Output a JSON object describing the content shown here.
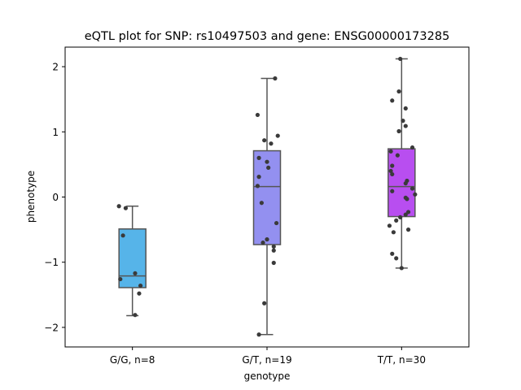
{
  "chart_data": {
    "type": "box",
    "title": "eQTL plot for SNP: rs10497503 and gene: ENSG00000173285",
    "xlabel": "genotype",
    "ylabel": "phenotype",
    "ylim": [
      -2.3,
      2.3
    ],
    "yticks": [
      {
        "value": -2,
        "label": "−2"
      },
      {
        "value": -1,
        "label": "−1"
      },
      {
        "value": 0,
        "label": "0"
      },
      {
        "value": 1,
        "label": "1"
      },
      {
        "value": 2,
        "label": "2"
      }
    ],
    "grid": false,
    "point_color": "#3a3a3a",
    "box_edge_color": "#555555",
    "series": [
      {
        "category": "G/G, n=8",
        "color": "#56b4e9",
        "box": {
          "whisker_low": -1.82,
          "q1": -1.39,
          "median": -1.21,
          "q3": -0.49,
          "whisker_high": -0.14
        },
        "points": [
          {
            "jitter": -0.1,
            "y": -0.14
          },
          {
            "jitter": -0.05,
            "y": -0.17
          },
          {
            "jitter": -0.07,
            "y": -0.59
          },
          {
            "jitter": 0.02,
            "y": -1.17
          },
          {
            "jitter": -0.09,
            "y": -1.26
          },
          {
            "jitter": 0.06,
            "y": -1.36
          },
          {
            "jitter": 0.05,
            "y": -1.48
          },
          {
            "jitter": 0.02,
            "y": -1.81
          }
        ]
      },
      {
        "category": "G/T, n=19",
        "color": "#9390f0",
        "box": {
          "whisker_low": -2.11,
          "q1": -0.73,
          "median": 0.16,
          "q3": 0.71,
          "whisker_high": 1.82
        },
        "points": [
          {
            "jitter": 0.06,
            "y": 1.82
          },
          {
            "jitter": -0.07,
            "y": 1.26
          },
          {
            "jitter": 0.08,
            "y": 0.94
          },
          {
            "jitter": -0.02,
            "y": 0.87
          },
          {
            "jitter": 0.03,
            "y": 0.82
          },
          {
            "jitter": -0.06,
            "y": 0.6
          },
          {
            "jitter": 0.0,
            "y": 0.54
          },
          {
            "jitter": 0.01,
            "y": 0.45
          },
          {
            "jitter": -0.06,
            "y": 0.31
          },
          {
            "jitter": -0.07,
            "y": 0.17
          },
          {
            "jitter": -0.04,
            "y": -0.09
          },
          {
            "jitter": 0.07,
            "y": -0.4
          },
          {
            "jitter": 0.0,
            "y": -0.65
          },
          {
            "jitter": -0.03,
            "y": -0.7
          },
          {
            "jitter": 0.05,
            "y": -0.76
          },
          {
            "jitter": 0.05,
            "y": -0.82
          },
          {
            "jitter": 0.05,
            "y": -1.01
          },
          {
            "jitter": -0.02,
            "y": -1.63
          },
          {
            "jitter": -0.06,
            "y": -2.11
          }
        ]
      },
      {
        "category": "T/T, n=30",
        "color": "#b84ef0",
        "box": {
          "whisker_low": -1.09,
          "q1": -0.3,
          "median": 0.16,
          "q3": 0.74,
          "whisker_high": 2.12
        },
        "points": [
          {
            "jitter": -0.01,
            "y": 2.12
          },
          {
            "jitter": -0.02,
            "y": 1.62
          },
          {
            "jitter": -0.07,
            "y": 1.48
          },
          {
            "jitter": 0.03,
            "y": 1.36
          },
          {
            "jitter": 0.01,
            "y": 1.17
          },
          {
            "jitter": 0.03,
            "y": 1.09
          },
          {
            "jitter": -0.02,
            "y": 1.01
          },
          {
            "jitter": 0.08,
            "y": 0.76
          },
          {
            "jitter": -0.08,
            "y": 0.7
          },
          {
            "jitter": -0.03,
            "y": 0.64
          },
          {
            "jitter": -0.07,
            "y": 0.48
          },
          {
            "jitter": -0.08,
            "y": 0.4
          },
          {
            "jitter": -0.07,
            "y": 0.35
          },
          {
            "jitter": 0.04,
            "y": 0.25
          },
          {
            "jitter": 0.03,
            "y": 0.21
          },
          {
            "jitter": 0.08,
            "y": 0.13
          },
          {
            "jitter": -0.07,
            "y": 0.09
          },
          {
            "jitter": 0.1,
            "y": 0.04
          },
          {
            "jitter": 0.03,
            "y": -0.01
          },
          {
            "jitter": 0.04,
            "y": -0.03
          },
          {
            "jitter": 0.05,
            "y": -0.23
          },
          {
            "jitter": 0.03,
            "y": -0.27
          },
          {
            "jitter": -0.01,
            "y": -0.31
          },
          {
            "jitter": -0.04,
            "y": -0.36
          },
          {
            "jitter": -0.09,
            "y": -0.44
          },
          {
            "jitter": 0.05,
            "y": -0.5
          },
          {
            "jitter": -0.06,
            "y": -0.54
          },
          {
            "jitter": -0.07,
            "y": -0.87
          },
          {
            "jitter": -0.04,
            "y": -0.94
          },
          {
            "jitter": 0.0,
            "y": -1.09
          }
        ]
      }
    ]
  }
}
